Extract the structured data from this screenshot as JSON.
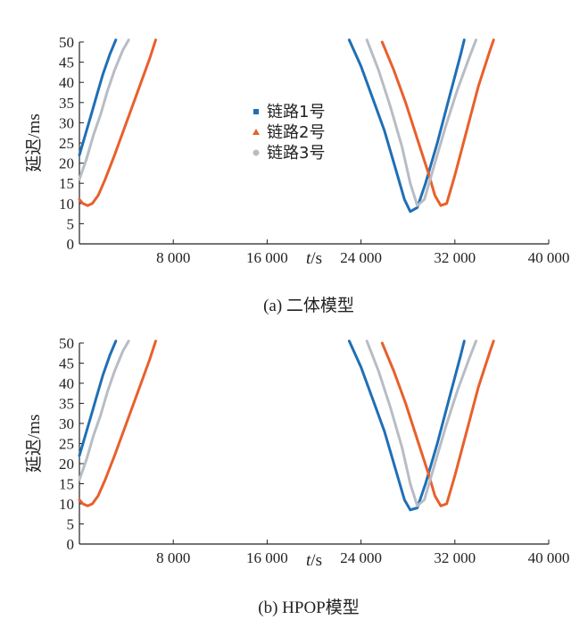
{
  "series_colors": [
    "#1f6fb5",
    "#e8602c",
    "#b8bcc4"
  ],
  "chart_data": [
    {
      "type": "line",
      "caption": "(a) 二体模型",
      "xlabel_italic": "t",
      "xlabel_unit": "/s",
      "ylabel": "延迟/ms",
      "xlim": [
        0,
        40000
      ],
      "ylim": [
        0,
        50
      ],
      "xticks": [
        8000,
        16000,
        24000,
        32000,
        40000
      ],
      "xtick_labels": [
        "8 000",
        "16 000",
        "24 000",
        "32 000",
        "40 000"
      ],
      "yticks": [
        0,
        5,
        10,
        15,
        20,
        25,
        30,
        35,
        40,
        45,
        50
      ],
      "ytick_labels": [
        "0",
        "5",
        "10",
        "15",
        "20",
        "25",
        "30",
        "35",
        "40",
        "45",
        "50"
      ],
      "legend": {
        "placement": "center-left",
        "entries": [
          "链路1号",
          "链路2号",
          "链路3号"
        ]
      },
      "series": [
        {
          "name": "链路1号",
          "segments": [
            [
              [
                0,
                22
              ],
              [
                500,
                27
              ],
              [
                1000,
                32
              ],
              [
                1500,
                37
              ],
              [
                2000,
                42
              ],
              [
                2600,
                47
              ],
              [
                3100,
                50.5
              ]
            ],
            [
              [
                23000,
                50.5
              ],
              [
                24000,
                44
              ],
              [
                25000,
                36
              ],
              [
                26000,
                28
              ],
              [
                27000,
                18
              ],
              [
                27700,
                11
              ],
              [
                28200,
                8
              ],
              [
                28800,
                9
              ],
              [
                29500,
                15
              ],
              [
                30500,
                25
              ],
              [
                31500,
                36
              ],
              [
                32500,
                47
              ],
              [
                32800,
                50.5
              ]
            ]
          ]
        },
        {
          "name": "链路2号",
          "segments": [
            [
              [
                0,
                11
              ],
              [
                300,
                10
              ],
              [
                700,
                9.5
              ],
              [
                1100,
                10
              ],
              [
                1600,
                12
              ],
              [
                2200,
                16
              ],
              [
                3000,
                22
              ],
              [
                4000,
                30
              ],
              [
                5000,
                38
              ],
              [
                6000,
                46
              ],
              [
                6500,
                50.5
              ]
            ],
            [
              [
                25800,
                50
              ],
              [
                26800,
                43
              ],
              [
                27800,
                35
              ],
              [
                28800,
                26
              ],
              [
                29800,
                17
              ],
              [
                30300,
                12
              ],
              [
                30800,
                9.5
              ],
              [
                31300,
                10
              ],
              [
                32000,
                17
              ],
              [
                33000,
                28
              ],
              [
                34000,
                39
              ],
              [
                35000,
                48
              ],
              [
                35300,
                50.5
              ]
            ]
          ]
        },
        {
          "name": "链路3号",
          "segments": [
            [
              [
                0,
                16
              ],
              [
                600,
                21
              ],
              [
                1200,
                27
              ],
              [
                1800,
                32
              ],
              [
                2400,
                38
              ],
              [
                3000,
                43
              ],
              [
                3700,
                48
              ],
              [
                4200,
                50.5
              ]
            ],
            [
              [
                24500,
                50.5
              ],
              [
                25500,
                43
              ],
              [
                26500,
                34
              ],
              [
                27500,
                24
              ],
              [
                28200,
                15
              ],
              [
                28800,
                9.5
              ],
              [
                29400,
                11
              ],
              [
                30200,
                19
              ],
              [
                31200,
                29
              ],
              [
                32200,
                38
              ],
              [
                33200,
                46
              ],
              [
                33800,
                50.5
              ]
            ]
          ]
        }
      ]
    },
    {
      "type": "line",
      "caption": "(b) HPOP模型",
      "xlabel_italic": "t",
      "xlabel_unit": "/s",
      "ylabel": "延迟/ms",
      "xlim": [
        0,
        40000
      ],
      "ylim": [
        0,
        50
      ],
      "xticks": [
        8000,
        16000,
        24000,
        32000,
        40000
      ],
      "xtick_labels": [
        "8 000",
        "16 000",
        "24 000",
        "32 000",
        "40 000"
      ],
      "yticks": [
        0,
        5,
        10,
        15,
        20,
        25,
        30,
        35,
        40,
        45,
        50
      ],
      "ytick_labels": [
        "0",
        "5",
        "10",
        "15",
        "20",
        "25",
        "30",
        "35",
        "40",
        "45",
        "50"
      ],
      "legend": null,
      "series": [
        {
          "name": "链路1号",
          "segments": [
            [
              [
                0,
                22
              ],
              [
                500,
                27
              ],
              [
                1000,
                32
              ],
              [
                1500,
                37
              ],
              [
                2000,
                42
              ],
              [
                2600,
                47
              ],
              [
                3100,
                50.5
              ]
            ],
            [
              [
                23000,
                50.5
              ],
              [
                24000,
                44
              ],
              [
                25000,
                36
              ],
              [
                26000,
                28
              ],
              [
                27000,
                18
              ],
              [
                27700,
                11
              ],
              [
                28200,
                8.5
              ],
              [
                28800,
                9
              ],
              [
                29500,
                15
              ],
              [
                30500,
                25
              ],
              [
                31500,
                36
              ],
              [
                32500,
                47
              ],
              [
                32800,
                50.5
              ]
            ]
          ]
        },
        {
          "name": "链路2号",
          "segments": [
            [
              [
                0,
                11
              ],
              [
                300,
                10
              ],
              [
                700,
                9.5
              ],
              [
                1100,
                10
              ],
              [
                1600,
                12
              ],
              [
                2200,
                16
              ],
              [
                3000,
                22
              ],
              [
                4000,
                30
              ],
              [
                5000,
                38
              ],
              [
                6000,
                46
              ],
              [
                6500,
                50.5
              ]
            ],
            [
              [
                25800,
                50
              ],
              [
                26800,
                43
              ],
              [
                27800,
                35
              ],
              [
                28800,
                26
              ],
              [
                29800,
                17
              ],
              [
                30300,
                12
              ],
              [
                30800,
                9.5
              ],
              [
                31300,
                10
              ],
              [
                32000,
                17
              ],
              [
                33000,
                28
              ],
              [
                34000,
                39
              ],
              [
                35000,
                48
              ],
              [
                35300,
                50.5
              ]
            ]
          ]
        },
        {
          "name": "链路3号",
          "segments": [
            [
              [
                0,
                16
              ],
              [
                600,
                21
              ],
              [
                1200,
                27
              ],
              [
                1800,
                32
              ],
              [
                2400,
                38
              ],
              [
                3000,
                43
              ],
              [
                3700,
                48
              ],
              [
                4200,
                50.5
              ]
            ],
            [
              [
                24500,
                50.5
              ],
              [
                25500,
                43
              ],
              [
                26500,
                34
              ],
              [
                27500,
                24
              ],
              [
                28200,
                15
              ],
              [
                28800,
                9.5
              ],
              [
                29400,
                11
              ],
              [
                30200,
                19
              ],
              [
                31200,
                29
              ],
              [
                32200,
                38
              ],
              [
                33200,
                46
              ],
              [
                33800,
                50.5
              ]
            ]
          ]
        }
      ]
    }
  ]
}
